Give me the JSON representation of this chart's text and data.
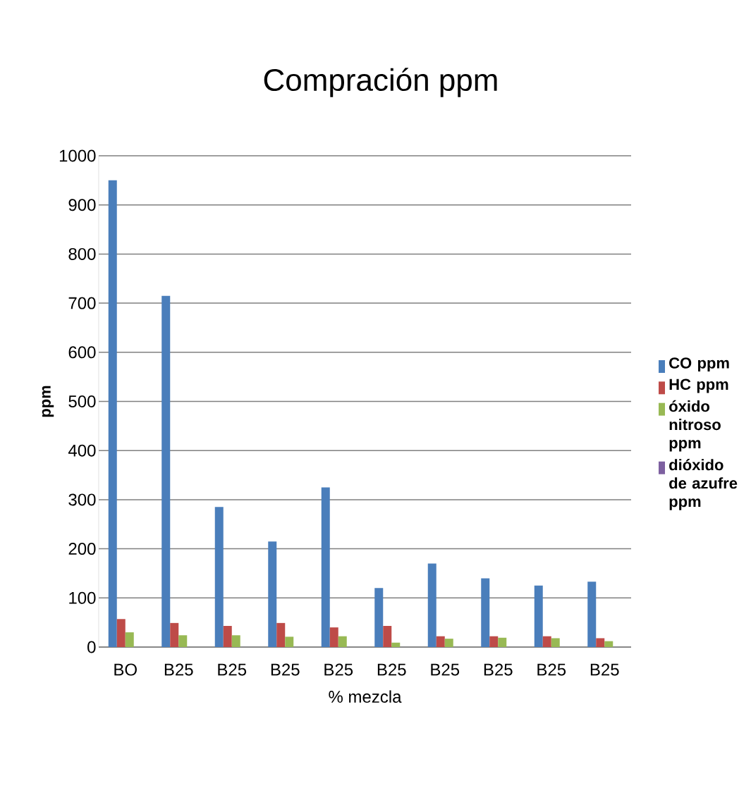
{
  "chart_data": {
    "type": "bar",
    "title": "Compración ppm",
    "xlabel": "% mezcla",
    "ylabel": "ppm",
    "categories": [
      "BO",
      "B25",
      "B25",
      "B25",
      "B25",
      "B25",
      "B25",
      "B25",
      "B25",
      "B25"
    ],
    "series": [
      {
        "name": "CO ppm",
        "color": "#4a7ebb",
        "values": [
          950,
          715,
          285,
          215,
          325,
          120,
          170,
          140,
          125,
          133
        ]
      },
      {
        "name": "HC ppm",
        "color": "#be4b48",
        "values": [
          57,
          49,
          43,
          49,
          40,
          43,
          22,
          22,
          22,
          18
        ]
      },
      {
        "name": "óxido nitroso ppm",
        "color": "#98b954",
        "values": [
          30,
          24,
          24,
          21,
          22,
          9,
          17,
          19,
          18,
          12
        ]
      },
      {
        "name": "dióxido de azufre ppm",
        "color": "#7d60a0",
        "values": [
          null,
          null,
          null,
          null,
          null,
          null,
          null,
          null,
          null,
          null
        ]
      }
    ],
    "ylim": [
      0,
      1000
    ],
    "yticks": [
      0,
      100,
      200,
      300,
      400,
      500,
      600,
      700,
      800,
      900,
      1000
    ],
    "grid": "y",
    "legend": "right"
  }
}
